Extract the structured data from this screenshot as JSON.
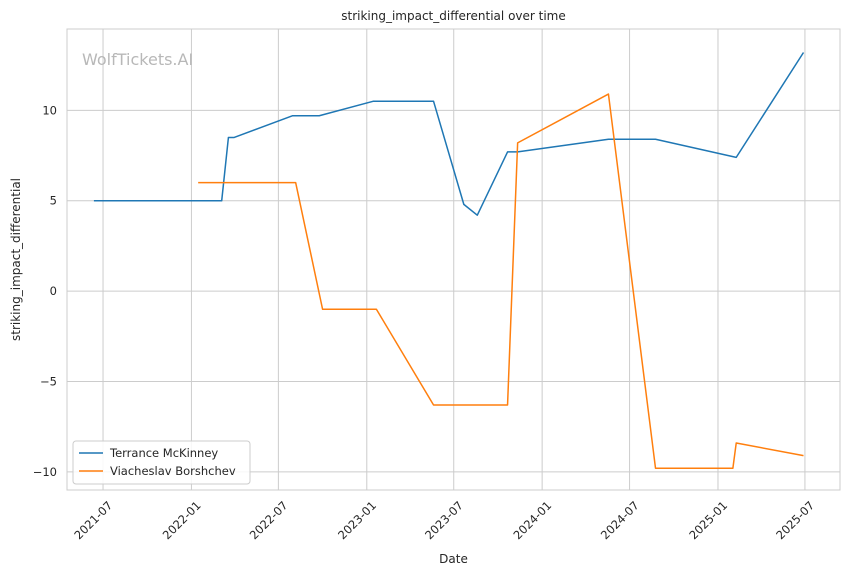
{
  "chart_data": {
    "type": "line",
    "title": "striking_impact_differential over time",
    "xlabel": "Date",
    "ylabel": "striking_impact_differential",
    "watermark": "WolfTickets.AI",
    "x_ticks": [
      "2021-07",
      "2022-01",
      "2022-07",
      "2023-01",
      "2023-07",
      "2024-01",
      "2024-07",
      "2025-01",
      "2025-07"
    ],
    "y_ticks": [
      -10,
      -5,
      0,
      5,
      10
    ],
    "xlim": [
      "2021-04-17",
      "2025-09-12"
    ],
    "ylim": [
      -11,
      14.5
    ],
    "grid": true,
    "legend_position": "lower-left",
    "series": [
      {
        "name": "Terrance McKinney",
        "color": "#1f77b4",
        "points": [
          {
            "x": "2021-06-12",
            "y": 5.0
          },
          {
            "x": "2022-03-05",
            "y": 5.0
          },
          {
            "x": "2022-03-19",
            "y": 8.5
          },
          {
            "x": "2022-03-31",
            "y": 8.5
          },
          {
            "x": "2022-07-30",
            "y": 9.7
          },
          {
            "x": "2022-09-24",
            "y": 9.7
          },
          {
            "x": "2023-01-14",
            "y": 10.5
          },
          {
            "x": "2023-05-20",
            "y": 10.5
          },
          {
            "x": "2023-07-22",
            "y": 4.8
          },
          {
            "x": "2023-08-19",
            "y": 4.2
          },
          {
            "x": "2023-10-21",
            "y": 7.7
          },
          {
            "x": "2023-11-11",
            "y": 7.7
          },
          {
            "x": "2024-05-18",
            "y": 8.4
          },
          {
            "x": "2024-08-24",
            "y": 8.4
          },
          {
            "x": "2025-02-08",
            "y": 7.4
          },
          {
            "x": "2025-06-28",
            "y": 13.2
          }
        ]
      },
      {
        "name": "Viacheslav Borshchev",
        "color": "#ff7f0e",
        "points": [
          {
            "x": "2022-01-15",
            "y": 6.0
          },
          {
            "x": "2022-08-06",
            "y": 6.0
          },
          {
            "x": "2022-10-01",
            "y": -1.0
          },
          {
            "x": "2023-01-21",
            "y": -1.0
          },
          {
            "x": "2023-05-20",
            "y": -6.3
          },
          {
            "x": "2023-10-21",
            "y": -6.3
          },
          {
            "x": "2023-11-11",
            "y": 8.2
          },
          {
            "x": "2024-05-18",
            "y": 10.9
          },
          {
            "x": "2024-08-24",
            "y": -9.8
          },
          {
            "x": "2025-02-01",
            "y": -9.8
          },
          {
            "x": "2025-02-08",
            "y": -8.4
          },
          {
            "x": "2025-06-28",
            "y": -9.1
          }
        ]
      }
    ]
  }
}
